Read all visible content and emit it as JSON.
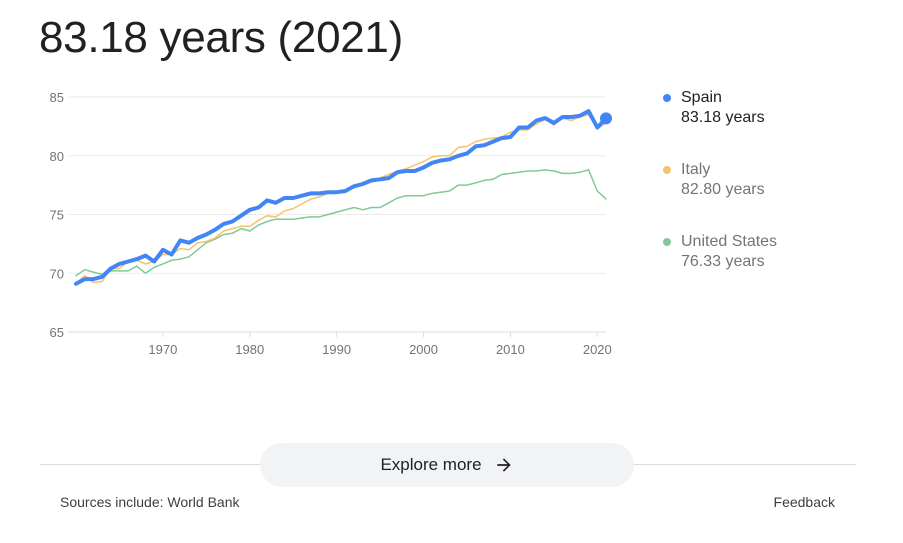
{
  "headline": "83.18 years (2021)",
  "legend": [
    {
      "name": "Spain",
      "value": "83.18 years",
      "color": "#4285f4"
    },
    {
      "name": "Italy",
      "value": "82.80 years",
      "color": "#f6c26b"
    },
    {
      "name": "United States",
      "value": "76.33 years",
      "color": "#81c995"
    }
  ],
  "explore_label": "Explore more",
  "sources": "Sources include: World Bank",
  "feedback": "Feedback",
  "chart_data": {
    "type": "line",
    "xlim": [
      1960,
      2021
    ],
    "ylim": [
      65,
      85
    ],
    "yticks": [
      85,
      80,
      75,
      70,
      65
    ],
    "xticks": [
      1970,
      1980,
      1990,
      2000,
      2010,
      2020
    ],
    "grid": true,
    "legend_position": "right",
    "x": [
      1960,
      1961,
      1962,
      1963,
      1964,
      1965,
      1966,
      1967,
      1968,
      1969,
      1970,
      1971,
      1972,
      1973,
      1974,
      1975,
      1976,
      1977,
      1978,
      1979,
      1980,
      1981,
      1982,
      1983,
      1984,
      1985,
      1986,
      1987,
      1988,
      1989,
      1990,
      1991,
      1992,
      1993,
      1994,
      1995,
      1996,
      1997,
      1998,
      1999,
      2000,
      2001,
      2002,
      2003,
      2004,
      2005,
      2006,
      2007,
      2008,
      2009,
      2010,
      2011,
      2012,
      2013,
      2014,
      2015,
      2016,
      2017,
      2018,
      2019,
      2020,
      2021
    ],
    "series": [
      {
        "name": "Spain",
        "color": "#4285f4",
        "width": 4,
        "values": [
          69.1,
          69.5,
          69.5,
          69.7,
          70.4,
          70.8,
          71.0,
          71.2,
          71.5,
          71.0,
          72.0,
          71.6,
          72.8,
          72.6,
          73.0,
          73.3,
          73.7,
          74.2,
          74.4,
          74.9,
          75.4,
          75.6,
          76.2,
          76.0,
          76.4,
          76.4,
          76.6,
          76.8,
          76.8,
          76.9,
          76.9,
          77.0,
          77.4,
          77.6,
          77.9,
          78.0,
          78.1,
          78.6,
          78.7,
          78.7,
          79.0,
          79.4,
          79.6,
          79.7,
          80.0,
          80.2,
          80.8,
          80.9,
          81.2,
          81.5,
          81.6,
          82.4,
          82.4,
          83.0,
          83.2,
          82.8,
          83.3,
          83.3,
          83.4,
          83.8,
          82.4,
          83.18
        ]
      },
      {
        "name": "Italy",
        "color": "#f6c26b",
        "width": 1.5,
        "values": [
          69.1,
          69.8,
          69.2,
          69.3,
          70.4,
          70.4,
          71.0,
          71.1,
          70.8,
          71.0,
          71.6,
          71.6,
          72.1,
          72.0,
          72.6,
          72.7,
          73.0,
          73.6,
          73.8,
          74.0,
          74.0,
          74.5,
          74.9,
          74.8,
          75.3,
          75.5,
          75.9,
          76.3,
          76.5,
          76.8,
          76.9,
          77.0,
          77.4,
          77.5,
          77.9,
          78.1,
          78.4,
          78.7,
          78.9,
          79.2,
          79.5,
          79.9,
          80.0,
          80.0,
          80.7,
          80.8,
          81.2,
          81.4,
          81.5,
          81.6,
          82.0,
          82.2,
          82.2,
          82.7,
          83.1,
          82.6,
          83.2,
          83.0,
          83.3,
          83.5,
          82.3,
          82.8
        ]
      },
      {
        "name": "United States",
        "color": "#81c995",
        "width": 1.5,
        "values": [
          69.8,
          70.3,
          70.1,
          69.9,
          70.2,
          70.2,
          70.2,
          70.6,
          70.0,
          70.5,
          70.8,
          71.1,
          71.2,
          71.4,
          72.0,
          72.6,
          72.9,
          73.3,
          73.4,
          73.8,
          73.6,
          74.1,
          74.4,
          74.6,
          74.6,
          74.6,
          74.7,
          74.8,
          74.8,
          75.0,
          75.2,
          75.4,
          75.6,
          75.4,
          75.6,
          75.6,
          76.0,
          76.4,
          76.6,
          76.6,
          76.6,
          76.8,
          76.9,
          77.0,
          77.5,
          77.5,
          77.7,
          77.9,
          78.0,
          78.4,
          78.5,
          78.6,
          78.7,
          78.7,
          78.8,
          78.7,
          78.5,
          78.5,
          78.6,
          78.8,
          77.0,
          76.33
        ]
      }
    ]
  }
}
